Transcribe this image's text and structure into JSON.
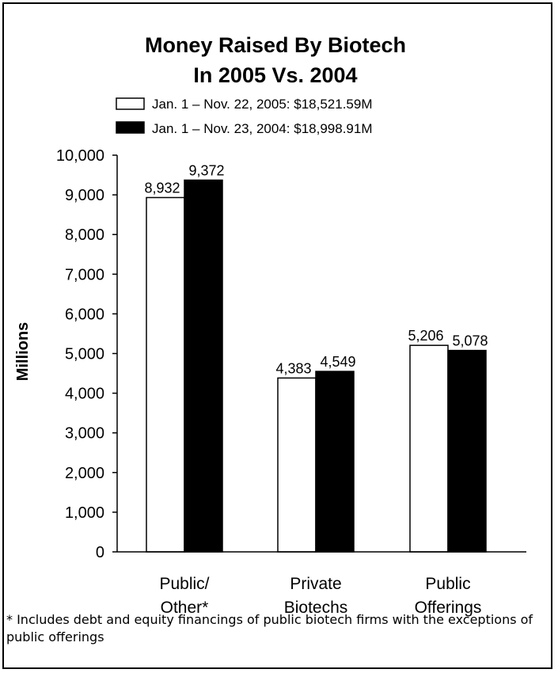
{
  "chart_data": {
    "type": "bar",
    "title": [
      "Money Raised By Biotech",
      "In 2005 Vs. 2004"
    ],
    "ylabel": "Millions",
    "xlabel": "",
    "ylim": [
      0,
      10000
    ],
    "yticks": [
      "0",
      "1,000",
      "2,000",
      "3,000",
      "4,000",
      "5,000",
      "6,000",
      "7,000",
      "8,000",
      "9,000",
      "10,000"
    ],
    "categories": [
      [
        "Public/",
        "Other*"
      ],
      [
        "Private",
        "Biotechs"
      ],
      [
        "Public",
        "Offerings"
      ]
    ],
    "series": [
      {
        "name": "Jan. 1 – Nov. 22, 2005: $18,521.59M",
        "fill": "#ffffff",
        "values": [
          8932,
          4383,
          5206
        ],
        "labels": [
          "8,932",
          "4,383",
          "5,206"
        ]
      },
      {
        "name": "Jan. 1 – Nov. 23, 2004: $18,998.91M",
        "fill": "#000000",
        "values": [
          9372,
          4549,
          5078
        ],
        "labels": [
          "9,372",
          "4,549",
          "5,078"
        ]
      }
    ],
    "legend_position": "top",
    "grid": false
  },
  "footnote": "* Includes debt and equity financings of public biotech firms with the exceptions of public offerings"
}
